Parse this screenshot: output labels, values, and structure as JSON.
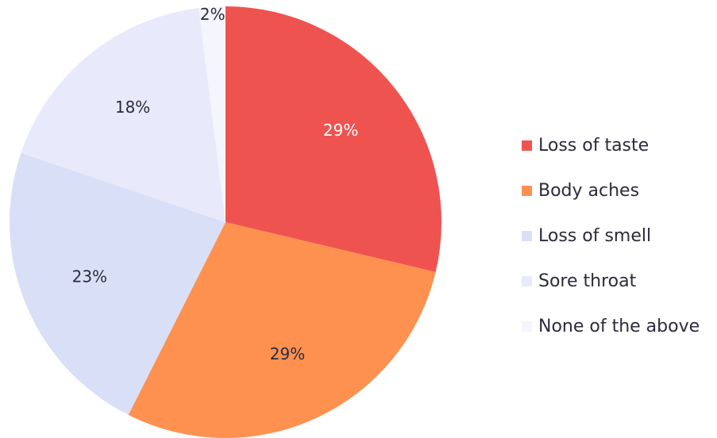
{
  "chart_data": {
    "type": "pie",
    "categories": [
      "Loss of taste",
      "Body aches",
      "Loss of smell",
      "Sore throat",
      "None of the above"
    ],
    "values": [
      29,
      29,
      23,
      18,
      2
    ],
    "value_labels": [
      "29%",
      "29%",
      "23%",
      "18%",
      "2%"
    ],
    "colors": [
      "#ef5350",
      "#fe9150",
      "#dadff8",
      "#e8eafb",
      "#f4f5fd"
    ],
    "label_colors": [
      "#ffffff",
      "#2b2b3b",
      "#2b2b3b",
      "#2b2b3b",
      "#2b2b3b"
    ],
    "legend": "right"
  }
}
